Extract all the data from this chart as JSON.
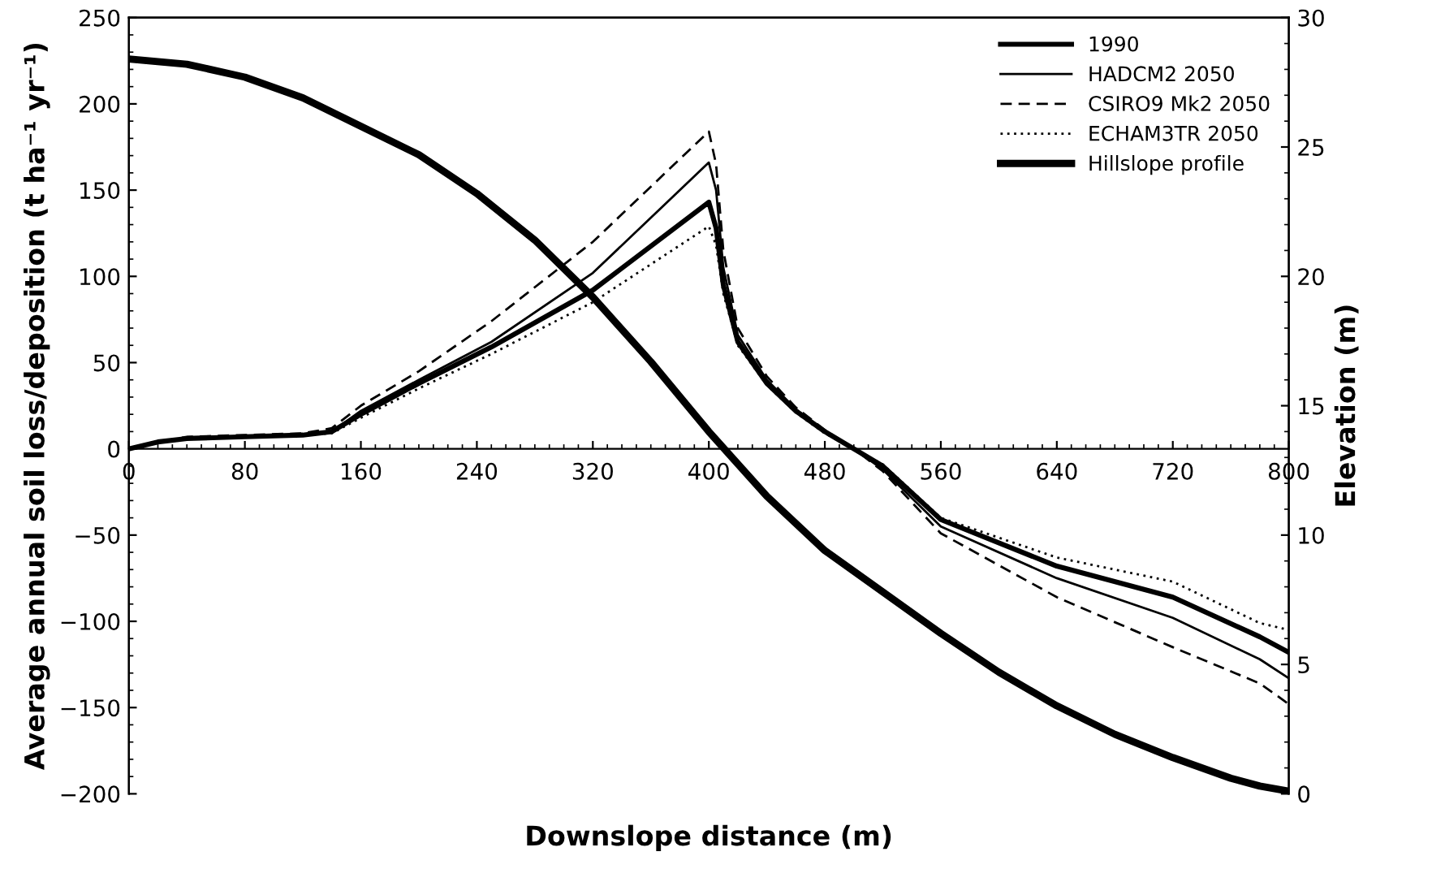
{
  "chart_data": {
    "type": "line",
    "xlabel": "Downslope distance (m)",
    "ylabel": "Average annual soil loss/deposition (t ha⁻¹ yr⁻¹)",
    "y2label": "Elevation (m)",
    "x": [
      0,
      20,
      40,
      80,
      120,
      140,
      160,
      200,
      250,
      320,
      400,
      405,
      410,
      420,
      440,
      460,
      480,
      500,
      520,
      560,
      640,
      720,
      780,
      800
    ],
    "series": [
      {
        "name": "1990",
        "color": "#000000",
        "line_style": "solid",
        "values": [
          0,
          4,
          6,
          7,
          8,
          10,
          20,
          38,
          59,
          92,
          143,
          128,
          95,
          62,
          38,
          22,
          10,
          0,
          -10,
          -41,
          -68,
          -86,
          -109,
          -118
        ]
      },
      {
        "name": "HADCM2 2050",
        "color": "#000000",
        "line_style": "solid",
        "values": [
          0,
          4,
          6,
          7,
          8,
          10,
          22,
          40,
          62,
          102,
          166,
          150,
          105,
          66,
          40,
          23,
          10,
          0,
          -12,
          -45,
          -75,
          -98,
          -122,
          -133
        ]
      },
      {
        "name": "CSIRO9 Mk2 2050",
        "color": "#000000",
        "line_style": "dashed",
        "values": [
          0,
          4,
          7,
          8,
          9,
          12,
          25,
          45,
          74,
          120,
          184,
          165,
          115,
          70,
          42,
          24,
          11,
          0,
          -13,
          -49,
          -86,
          -115,
          -136,
          -148
        ]
      },
      {
        "name": "ECHAM3TR 2050",
        "color": "#000000",
        "line_style": "dotted",
        "values": [
          0,
          4,
          6,
          7,
          8,
          9,
          18,
          35,
          55,
          85,
          129,
          118,
          90,
          60,
          37,
          21,
          9,
          0,
          -9,
          -40,
          -63,
          -77,
          -101,
          -105
        ]
      },
      {
        "name": "Hillslope profile",
        "color": "#000000",
        "line_style": "solid",
        "axis": "y2",
        "x": [
          0,
          40,
          80,
          120,
          160,
          200,
          240,
          280,
          320,
          360,
          400,
          440,
          480,
          520,
          560,
          600,
          640,
          680,
          720,
          760,
          780,
          800
        ],
        "values": [
          28.4,
          28.2,
          27.7,
          26.9,
          25.8,
          24.7,
          23.2,
          21.4,
          19.2,
          16.7,
          14.0,
          11.5,
          9.4,
          7.8,
          6.2,
          4.7,
          3.4,
          2.3,
          1.4,
          0.6,
          0.3,
          0.1
        ]
      }
    ],
    "xlim": [
      0,
      800
    ],
    "xticks": [
      0,
      80,
      160,
      240,
      320,
      400,
      480,
      560,
      640,
      720,
      800
    ],
    "ylim": [
      -200,
      250
    ],
    "yticks": [
      -200,
      -150,
      -100,
      -50,
      0,
      50,
      100,
      150,
      200,
      250
    ],
    "y2lim": [
      0,
      30
    ],
    "y2ticks": [
      0,
      5,
      10,
      15,
      20,
      25,
      30
    ],
    "grid": false,
    "legend": "top right",
    "marker": "none"
  }
}
